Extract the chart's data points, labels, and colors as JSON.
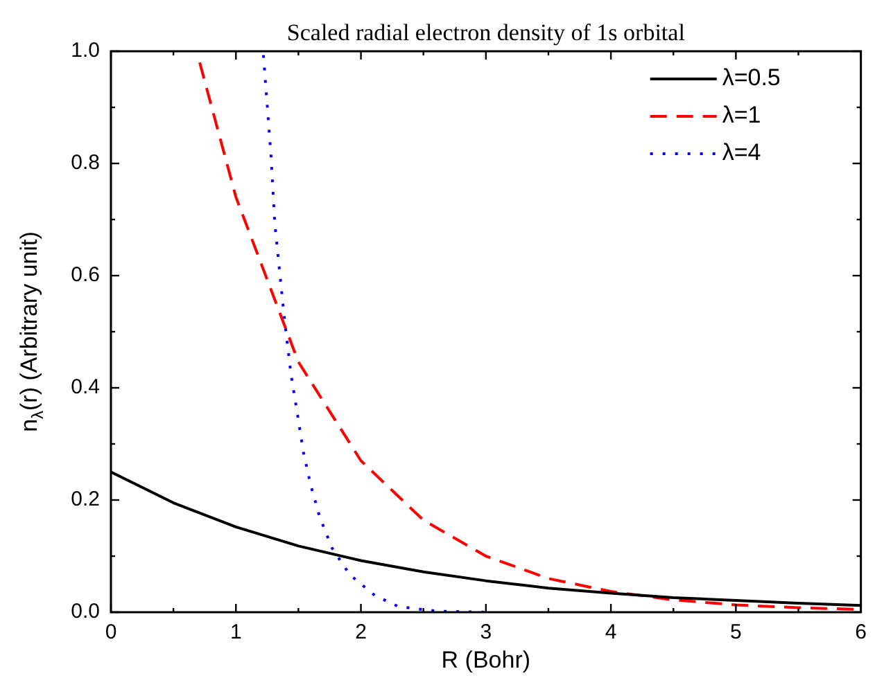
{
  "chart_data": {
    "type": "line",
    "title": "Scaled radial electron density of 1s orbital",
    "xlabel": "R (Bohr)",
    "ylabel": "n$_{λ}$(r) (Arbitrary unit)",
    "xlim": [
      0,
      6
    ],
    "xticks": [
      0,
      1,
      2,
      3,
      4,
      5,
      6
    ],
    "ylim": [
      0,
      1
    ],
    "yticks": [
      {
        "value": 0,
        "label": "0.0"
      },
      {
        "value": 0.2,
        "label": "0.2"
      },
      {
        "value": 0.4,
        "label": "0.4"
      },
      {
        "value": 0.6,
        "label": "0.6"
      },
      {
        "value": 0.8,
        "label": "0.8"
      },
      {
        "value": 1,
        "label": "1.0"
      }
    ],
    "grid": false,
    "legend": "top right",
    "marker": "none",
    "series": [
      {
        "name": "λ=0.5",
        "color": "#000000",
        "line_style": "solid",
        "x": [
          0,
          0.5,
          1,
          1.5,
          2,
          2.5,
          3,
          3.5,
          4,
          4.5,
          5,
          5.5,
          6
        ],
        "values": [
          0.25,
          0.195,
          0.152,
          0.118,
          0.092,
          0.072,
          0.056,
          0.043,
          0.034,
          0.026,
          0.021,
          0.016,
          0.012
        ]
      },
      {
        "name": "λ=1",
        "color": "#ff0000",
        "line_style": "dashed",
        "x": [
          0.71,
          1,
          1.5,
          2,
          2.5,
          3,
          3.5,
          4,
          4.5,
          5,
          5.5,
          6
        ],
        "values": [
          0.98,
          0.74,
          0.446,
          0.27,
          0.164,
          0.1,
          0.06,
          0.037,
          0.022,
          0.013,
          0.008,
          0.005
        ]
      },
      {
        "name": "λ=4",
        "color": "#0000ff",
        "line_style": "dotted",
        "x": [
          1.22,
          1.28,
          1.31,
          1.35,
          1.39,
          1.44,
          1.5,
          1.54,
          1.6,
          1.67,
          1.77,
          1.91,
          2.11,
          2.3,
          2.6,
          3
        ],
        "values": [
          0.993,
          0.816,
          0.696,
          0.606,
          0.519,
          0.425,
          0.342,
          0.285,
          0.225,
          0.17,
          0.114,
          0.067,
          0.03,
          0.01,
          0.002,
          0
        ]
      }
    ]
  }
}
